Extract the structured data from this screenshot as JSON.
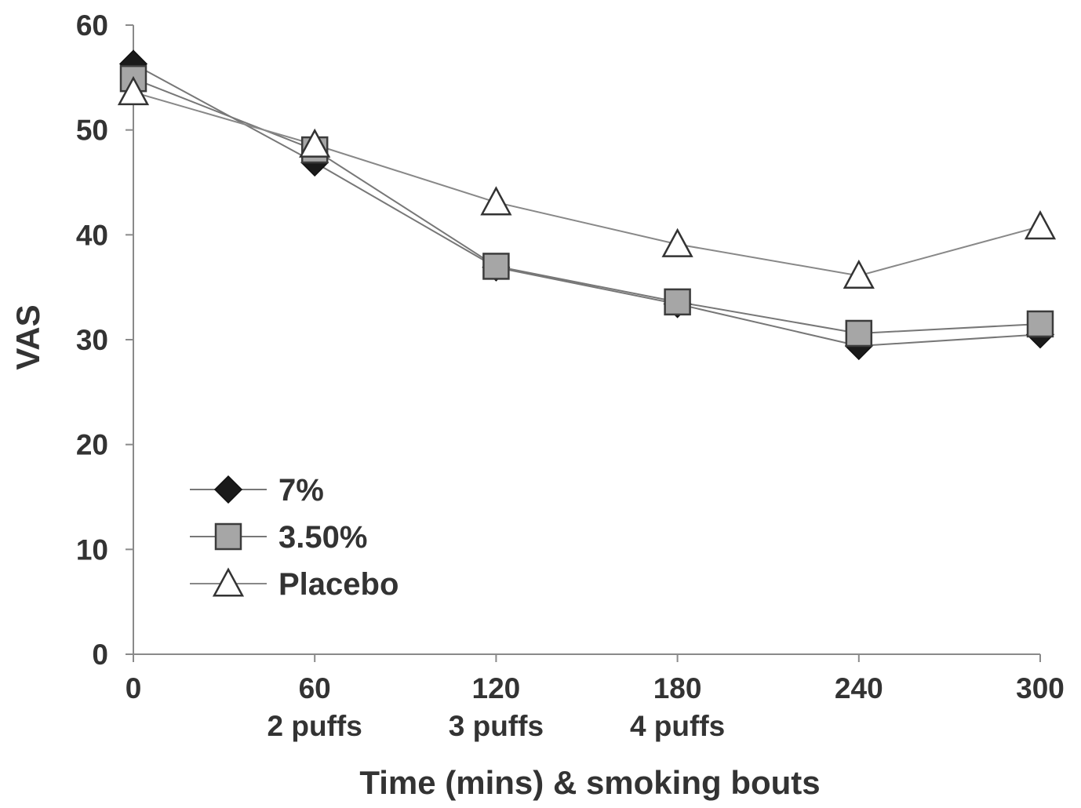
{
  "chart_data": {
    "type": "line",
    "title": "",
    "xlabel": "Time (mins) & smoking bouts",
    "ylabel": "VAS",
    "x": [
      0,
      60,
      120,
      180,
      240,
      300
    ],
    "xtick_labels": [
      "0",
      "60",
      "120",
      "180",
      "240",
      "300"
    ],
    "xtick_sublabels": [
      "",
      "2 puffs",
      "3 puffs",
      "4 puffs",
      "",
      ""
    ],
    "yticks": [
      0,
      10,
      20,
      30,
      40,
      50,
      60
    ],
    "xlim": [
      0,
      300
    ],
    "ylim": [
      0,
      60
    ],
    "grid": false,
    "legend_position": "lower-left",
    "series": [
      {
        "name": "7%",
        "marker": "diamond",
        "fill": "#1a1a1a",
        "line_color": "#777777",
        "values": [
          56.3,
          46.9,
          36.9,
          33.4,
          29.4,
          30.5
        ]
      },
      {
        "name": "3.50%",
        "marker": "square",
        "fill": "#a6a6a6",
        "line_color": "#777777",
        "values": [
          54.9,
          48.1,
          37.0,
          33.6,
          30.6,
          31.5
        ]
      },
      {
        "name": "Placebo",
        "marker": "triangle",
        "fill": "#ffffff",
        "line_color": "#888888",
        "values": [
          53.6,
          48.6,
          43.1,
          39.1,
          36.1,
          40.8
        ]
      }
    ]
  }
}
